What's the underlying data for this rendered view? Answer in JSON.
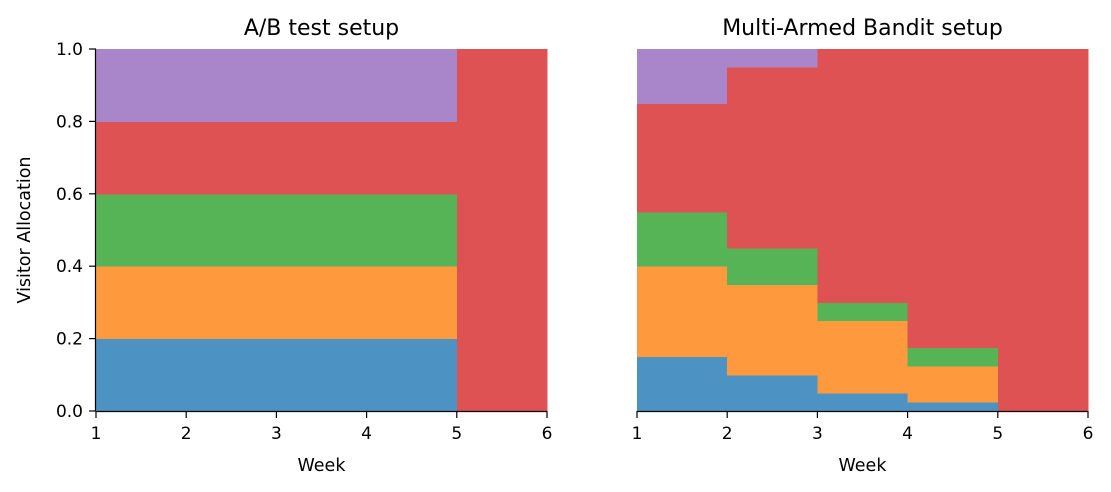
{
  "chart_data": [
    {
      "type": "area",
      "title": "A/B test setup",
      "xlabel": "Week",
      "ylabel": "Visitor Allocation",
      "xlim": [
        1,
        6
      ],
      "ylim": [
        0,
        1
      ],
      "xticks": [
        "1",
        "2",
        "3",
        "4",
        "5",
        "6"
      ],
      "yticks": [
        "0.0",
        "0.2",
        "0.4",
        "0.6",
        "0.8",
        "1.0"
      ],
      "grid": false,
      "stacked": true,
      "step": true,
      "weeks": [
        1,
        2,
        3,
        4,
        5
      ],
      "series": [
        {
          "color": "#4c92c3",
          "values": [
            0.2,
            0.2,
            0.2,
            0.2,
            0
          ]
        },
        {
          "color": "#ff993e",
          "values": [
            0.2,
            0.2,
            0.2,
            0.2,
            0
          ]
        },
        {
          "color": "#56b356",
          "values": [
            0.2,
            0.2,
            0.2,
            0.2,
            0
          ]
        },
        {
          "color": "#de5253",
          "values": [
            0.2,
            0.2,
            0.2,
            0.2,
            1.0
          ]
        },
        {
          "color": "#a985c9",
          "values": [
            0.2,
            0.2,
            0.2,
            0.2,
            0
          ]
        }
      ]
    },
    {
      "type": "area",
      "title": "Multi-Armed Bandit setup",
      "xlabel": "Week",
      "ylabel": "",
      "xlim": [
        1,
        6
      ],
      "ylim": [
        0,
        1
      ],
      "xticks": [
        "1",
        "2",
        "3",
        "4",
        "5",
        "6"
      ],
      "yticks": [],
      "grid": false,
      "stacked": true,
      "step": true,
      "weeks": [
        1,
        2,
        3,
        4,
        5
      ],
      "series": [
        {
          "color": "#4c92c3",
          "values": [
            0.15,
            0.1,
            0.05,
            0.025,
            0
          ]
        },
        {
          "color": "#ff993e",
          "values": [
            0.25,
            0.25,
            0.2,
            0.1,
            0
          ]
        },
        {
          "color": "#56b356",
          "values": [
            0.15,
            0.1,
            0.05,
            0.05,
            0
          ]
        },
        {
          "color": "#de5253",
          "values": [
            0.3,
            0.5,
            0.7,
            0.825,
            1.0
          ]
        },
        {
          "color": "#a985c9",
          "values": [
            0.15,
            0.05,
            0,
            0,
            0
          ]
        }
      ]
    }
  ]
}
